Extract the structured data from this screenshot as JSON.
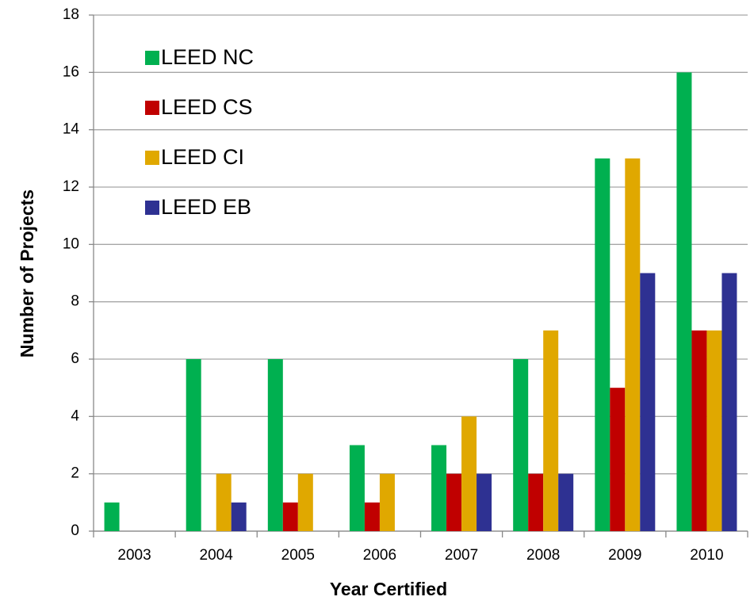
{
  "chart_data": {
    "type": "bar",
    "xlabel": "Year Certified",
    "ylabel": "Number of Projects",
    "categories": [
      "2003",
      "2004",
      "2005",
      "2006",
      "2007",
      "2008",
      "2009",
      "2010"
    ],
    "series": [
      {
        "name": "LEED NC",
        "color": "#00b050",
        "values": [
          1,
          6,
          6,
          3,
          3,
          6,
          13,
          16
        ]
      },
      {
        "name": "LEED CS",
        "color": "#c00000",
        "values": [
          0,
          0,
          1,
          1,
          2,
          2,
          5,
          7
        ]
      },
      {
        "name": "LEED CI",
        "color": "#e0a800",
        "values": [
          0,
          2,
          2,
          2,
          4,
          7,
          13,
          7
        ]
      },
      {
        "name": "LEED EB",
        "color": "#2e3192",
        "values": [
          0,
          1,
          0,
          0,
          2,
          2,
          9,
          9
        ]
      }
    ],
    "ylim": [
      0,
      18
    ],
    "yticks": [
      0,
      2,
      4,
      6,
      8,
      10,
      12,
      14,
      16,
      18
    ],
    "grid": true,
    "legend": "upper left"
  }
}
